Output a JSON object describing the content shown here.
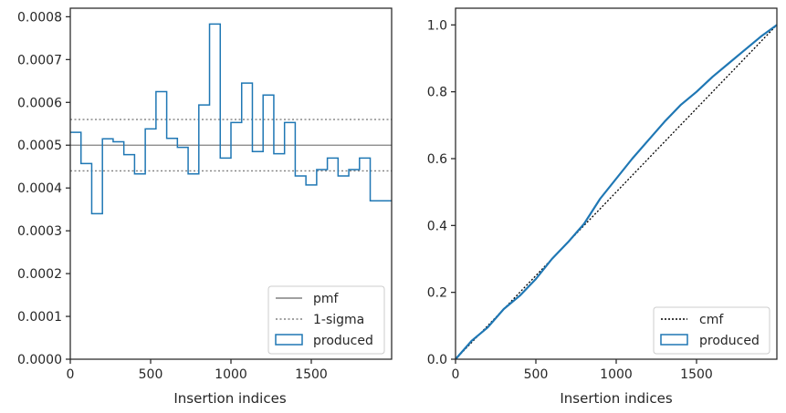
{
  "colors": {
    "produced": "#1f77b4",
    "pmf": "#808080",
    "sigma": "#808080",
    "cmf": "#000000",
    "axes": "#262626"
  },
  "chart_data": [
    {
      "type": "step",
      "xlabel": "Insertion indices",
      "ylabel": "",
      "xlim": [
        0,
        2000
      ],
      "ylim": [
        0,
        0.00082
      ],
      "xticks": [
        0,
        500,
        1000,
        1500
      ],
      "xtick_labels": [
        "0",
        "500",
        "1000",
        "1500"
      ],
      "yticks": [
        0,
        0.0001,
        0.0002,
        0.0003,
        0.0004,
        0.0005,
        0.0006,
        0.0007,
        0.0008
      ],
      "ytick_labels": [
        "0.0000",
        "0.0001",
        "0.0002",
        "0.0003",
        "0.0004",
        "0.0005",
        "0.0006",
        "0.0007",
        "0.0008"
      ],
      "pmf": 0.0005,
      "sigma_band": [
        0.00044,
        0.00056
      ],
      "bin_width": 66.6667,
      "produced": [
        0.00053,
        0.000457,
        0.00034,
        0.000515,
        0.000508,
        0.000478,
        0.000433,
        0.000538,
        0.000625,
        0.000516,
        0.000495,
        0.000433,
        0.000594,
        0.000783,
        0.00047,
        0.000553,
        0.000645,
        0.000485,
        0.000617,
        0.00048,
        0.000553,
        0.000428,
        0.000407,
        0.000443,
        0.00047,
        0.000428,
        0.000443,
        0.00047,
        0.00037,
        0.00037
      ],
      "legend": {
        "position": "lower-right",
        "entries": [
          {
            "key": "pmf",
            "label": "pmf"
          },
          {
            "key": "sigma",
            "label": "1-sigma"
          },
          {
            "key": "produced",
            "label": "produced"
          }
        ]
      }
    },
    {
      "type": "line",
      "xlabel": "Insertion indices",
      "ylabel": "",
      "xlim": [
        0,
        2000
      ],
      "ylim": [
        0,
        1.05
      ],
      "xticks": [
        0,
        500,
        1000,
        1500
      ],
      "xtick_labels": [
        "0",
        "500",
        "1000",
        "1500"
      ],
      "yticks": [
        0,
        0.2,
        0.4,
        0.6,
        0.8,
        1.0
      ],
      "ytick_labels": [
        "0.0",
        "0.2",
        "0.4",
        "0.6",
        "0.8",
        "1.0"
      ],
      "cmf": {
        "x": [
          0,
          2000
        ],
        "y": [
          0,
          1.0
        ]
      },
      "produced": {
        "x": [
          0,
          100,
          200,
          300,
          400,
          500,
          600,
          700,
          800,
          900,
          1000,
          1100,
          1200,
          1300,
          1400,
          1500,
          1600,
          1700,
          1800,
          1900,
          2000
        ],
        "y": [
          0,
          0.055,
          0.095,
          0.15,
          0.19,
          0.24,
          0.3,
          0.35,
          0.405,
          0.48,
          0.54,
          0.6,
          0.655,
          0.71,
          0.76,
          0.8,
          0.845,
          0.885,
          0.925,
          0.965,
          1.0
        ]
      },
      "legend": {
        "position": "lower-right",
        "entries": [
          {
            "key": "cmf",
            "label": "cmf"
          },
          {
            "key": "produced",
            "label": "produced"
          }
        ]
      }
    }
  ]
}
